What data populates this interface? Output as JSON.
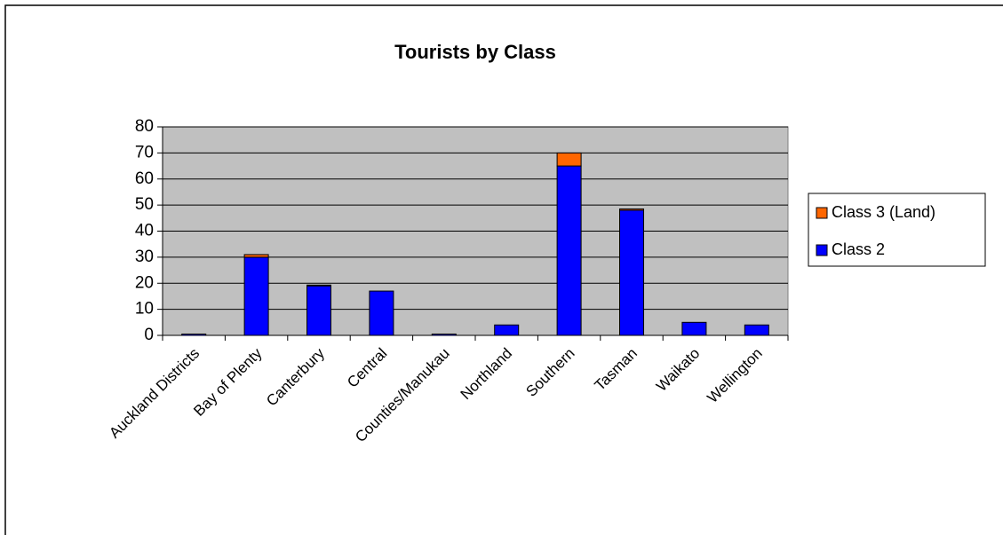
{
  "chart_data": {
    "type": "stacked_bar",
    "title": "Tourists by Class",
    "categories": [
      "Auckland Districts",
      "Bay of Plenty",
      "Canterbury",
      "Central",
      "Counties/Manukau",
      "Northland",
      "Southern",
      "Tasman",
      "Waikato",
      "Wellington"
    ],
    "series": [
      {
        "name": "Class 2",
        "color": "#0000ff",
        "values": [
          0.5,
          30,
          19,
          17,
          0.5,
          4,
          65,
          48,
          5,
          4
        ]
      },
      {
        "name": "Class 3 (Land)",
        "color": "#ff6600",
        "values": [
          0,
          1,
          0.3,
          0,
          0,
          0,
          5,
          0.5,
          0,
          0
        ]
      }
    ],
    "ylim": [
      0,
      80
    ],
    "yticks": [
      0,
      10,
      20,
      30,
      40,
      50,
      60,
      70,
      80
    ],
    "grid": true,
    "legend": "right"
  }
}
